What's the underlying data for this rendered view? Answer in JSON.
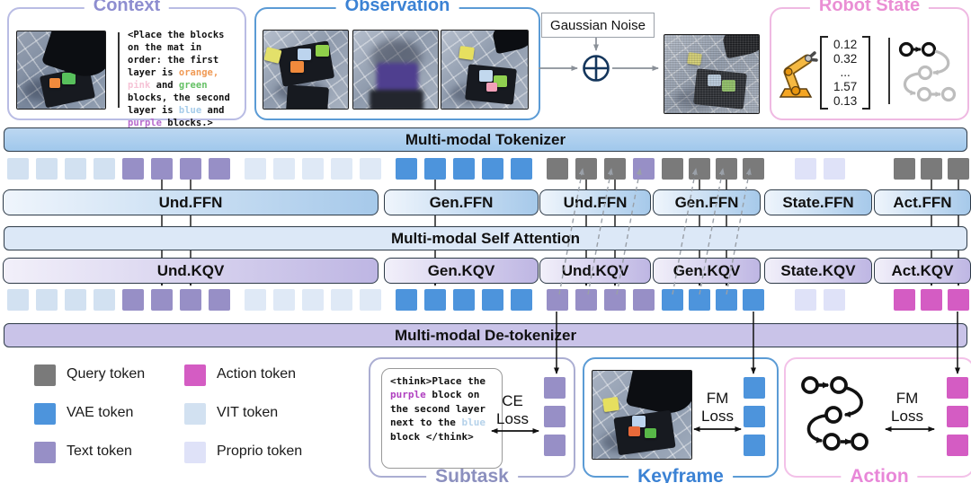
{
  "top": {
    "context": {
      "title": "Context",
      "text_segments": [
        {
          "t": "<Place the blocks on the mat in order: the first layer is "
        },
        {
          "t": "orange,",
          "c": "orange"
        },
        {
          "t": " "
        },
        {
          "t": "pink",
          "c": "pink"
        },
        {
          "t": " and "
        },
        {
          "t": "green",
          "c": "green"
        },
        {
          "t": " blocks, the second layer is "
        },
        {
          "t": "blue",
          "c": "blue"
        },
        {
          "t": " and "
        },
        {
          "t": "purple",
          "c": "purple"
        },
        {
          "t": " blocks.>"
        }
      ]
    },
    "observation": {
      "title": "Observation"
    },
    "gaussian_label": "Gaussian Noise",
    "robot_state": {
      "title": "Robot State",
      "vector": [
        "0.12",
        "0.32",
        "...",
        "1.57",
        "0.13"
      ]
    }
  },
  "bars": {
    "tokenizer": "Multi-modal Tokenizer",
    "attention": "Multi-modal Self Attention",
    "detokenizer": "Multi-modal De-tokenizer"
  },
  "ffn_labels": [
    "Und.FFN",
    "Gen.FFN",
    "Und.FFN",
    "Gen.FFN",
    "State.FFN",
    "Act.FFN"
  ],
  "kqv_labels": [
    "Und.KQV",
    "Gen.KQV",
    "Und.KQV",
    "Gen.KQV",
    "State.KQV",
    "Act.KQV"
  ],
  "token_colors": {
    "query": "#7a7a7a",
    "action": "#d45cc3",
    "vae": "#4d94dc",
    "vit": "#d2e1f1",
    "vit2": "#dfe9f6",
    "text": "#978fc6",
    "proprio": "#dfe2f8"
  },
  "token_rows": {
    "row1": [
      {
        "type": "vit",
        "count": 4
      },
      {
        "type": "text",
        "count": 4
      },
      {
        "type": "vit2",
        "count": 5
      },
      {
        "type": "vae",
        "count": 5
      },
      {
        "type": "query",
        "count": 3
      },
      {
        "type": "text",
        "count": 1
      },
      {
        "type": "query",
        "count": 4
      },
      {
        "type": "proprio",
        "count": 2
      },
      {
        "type": "query",
        "count": 3
      }
    ],
    "row2": [
      {
        "type": "vit",
        "count": 4
      },
      {
        "type": "text",
        "count": 4
      },
      {
        "type": "vit2",
        "count": 5
      },
      {
        "type": "vae",
        "count": 5
      },
      {
        "type": "text",
        "count": 4
      },
      {
        "type": "vae",
        "count": 4
      },
      {
        "type": "proprio",
        "count": 2
      },
      {
        "type": "action",
        "count": 3
      }
    ]
  },
  "legend": [
    {
      "label": "Query token",
      "type": "query"
    },
    {
      "label": "Action token",
      "type": "action"
    },
    {
      "label": "VAE token",
      "type": "vae"
    },
    {
      "label": "VIT token",
      "type": "vit"
    },
    {
      "label": "Text token",
      "type": "text"
    },
    {
      "label": "Proprio token",
      "type": "proprio"
    }
  ],
  "outputs": {
    "subtask": {
      "title": "Subtask",
      "loss": "CE Loss",
      "token_type": "text",
      "think_segments": [
        {
          "t": "<think>"
        },
        {
          "t": "Place the "
        },
        {
          "t": "purple",
          "c": "think_purple"
        },
        {
          "t": " block on the second layer next to the "
        },
        {
          "t": "blue",
          "c": "think_blue"
        },
        {
          "t": " block "
        },
        {
          "t": "</think>"
        }
      ]
    },
    "keyframe": {
      "title": "Keyframe",
      "loss": "FM Loss",
      "token_type": "vae"
    },
    "action": {
      "title": "Action",
      "loss": "FM Loss",
      "token_type": "action"
    }
  },
  "text_colors": {
    "orange": "#f09a55",
    "pink": "#f6c3d6",
    "green": "#66c166",
    "blue": "#a5cbe9",
    "purple": "#b669cd",
    "think_purple": "#b040c0",
    "think_blue": "#b5d2ea"
  }
}
